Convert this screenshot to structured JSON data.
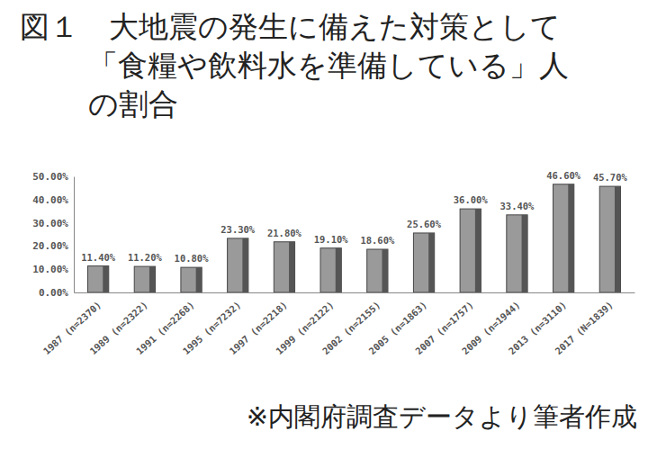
{
  "chart_data": {
    "type": "bar",
    "title": "図１　大地震の発生に備えた対策として\n「食糧や飲料水を準備している」人\nの割合",
    "source": "※内閣府調査データより筆者作成",
    "categories": [
      "1987 (n=2370)",
      "1989 (n=2322)",
      "1991 (n=2268)",
      "1995 (n=7232)",
      "1997 (n=2218)",
      "1999 (n=2122)",
      "2002 (n=2155)",
      "2005 (n=1863)",
      "2007 (n=1757)",
      "2009 (n=1944)",
      "2013 (n=3110)",
      "2017 (N=1839)"
    ],
    "values": [
      11.4,
      11.2,
      10.8,
      23.3,
      21.8,
      19.1,
      18.6,
      25.6,
      36.0,
      33.4,
      46.6,
      45.7
    ],
    "value_labels": [
      "11.40%",
      "11.20%",
      "10.80%",
      "23.30%",
      "21.80%",
      "19.10%",
      "18.60%",
      "25.60%",
      "36.00%",
      "33.40%",
      "46.60%",
      "45.70%"
    ],
    "data_labels": true,
    "color": "#9a9a9a",
    "ylim": [
      0,
      50
    ],
    "yticks": [
      {
        "value": 0,
        "label": "0.00%"
      },
      {
        "value": 10,
        "label": "10.00%"
      },
      {
        "value": 20,
        "label": "20.00%"
      },
      {
        "value": 30,
        "label": "30.00%"
      },
      {
        "value": 40,
        "label": "40.00%"
      },
      {
        "value": 50,
        "label": "50.00%"
      }
    ],
    "grid": false
  }
}
